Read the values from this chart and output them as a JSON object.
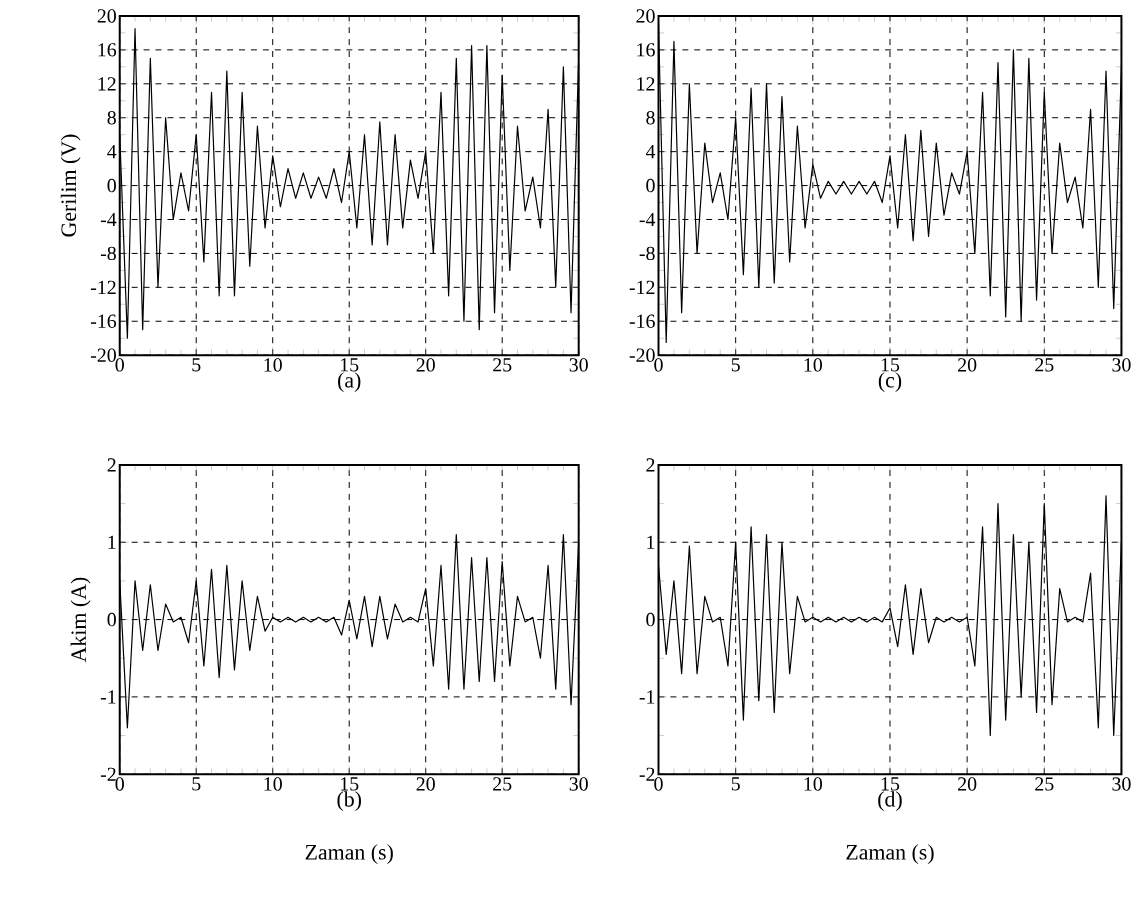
{
  "chart_data": [
    {
      "type": "line",
      "title": "(a)",
      "ylabel": "Gerilim (V)",
      "xlim": [
        0,
        30
      ],
      "ylim": [
        -20,
        20
      ],
      "xticks": [
        0,
        5,
        10,
        15,
        20,
        25,
        30
      ],
      "yticks": [
        -20,
        -16,
        -12,
        -8,
        -4,
        0,
        4,
        8,
        12,
        16,
        20
      ],
      "grid": true,
      "x": [
        0,
        0.5,
        1,
        1.5,
        2,
        2.5,
        3,
        3.5,
        4,
        4.5,
        5,
        5.5,
        6,
        6.5,
        7,
        7.5,
        8,
        8.5,
        9,
        9.5,
        10,
        10.5,
        11,
        11.5,
        12,
        12.5,
        13,
        13.5,
        14,
        14.5,
        15,
        15.5,
        16,
        16.5,
        17,
        17.5,
        18,
        18.5,
        19,
        19.5,
        20,
        20.5,
        21,
        21.5,
        22,
        22.5,
        23,
        23.5,
        24,
        24.5,
        25,
        25.5,
        26,
        26.5,
        27,
        27.5,
        28,
        28.5,
        29,
        29.5,
        30
      ],
      "series": [
        {
          "color": "#000000",
          "values": [
            6,
            -18,
            18.5,
            -17,
            15,
            -12,
            8,
            -4,
            1.5,
            -3,
            6,
            -9,
            11,
            -13,
            13.5,
            -13,
            11,
            -9.5,
            7,
            -5,
            3.5,
            -2.5,
            2,
            -1.5,
            1.5,
            -1.5,
            1,
            -1.5,
            2,
            -2,
            4,
            -5,
            6,
            -7,
            7.5,
            -7,
            6,
            -5,
            3,
            -1.5,
            4,
            -8,
            11,
            -13,
            15,
            -16,
            16.5,
            -17,
            16.5,
            -15,
            13,
            -10,
            7,
            -3,
            1,
            -5,
            9,
            -12,
            14,
            -15,
            15
          ]
        }
      ]
    },
    {
      "type": "line",
      "title": "(c)",
      "xlim": [
        0,
        30
      ],
      "ylim": [
        -20,
        20
      ],
      "xticks": [
        0,
        5,
        10,
        15,
        20,
        25,
        30
      ],
      "yticks": [
        -20,
        -16,
        -12,
        -8,
        -4,
        0,
        4,
        8,
        12,
        16,
        20
      ],
      "grid": true,
      "x": [
        0,
        0.5,
        1,
        1.5,
        2,
        2.5,
        3,
        3.5,
        4,
        4.5,
        5,
        5.5,
        6,
        6.5,
        7,
        7.5,
        8,
        8.5,
        9,
        9.5,
        10,
        10.5,
        11,
        11.5,
        12,
        12.5,
        13,
        13.5,
        14,
        14.5,
        15,
        15.5,
        16,
        16.5,
        17,
        17.5,
        18,
        18.5,
        19,
        19.5,
        20,
        20.5,
        21,
        21.5,
        22,
        22.5,
        23,
        23.5,
        24,
        24.5,
        25,
        25.5,
        26,
        26.5,
        27,
        27.5,
        28,
        28.5,
        29,
        29.5,
        30
      ],
      "series": [
        {
          "color": "#000000",
          "values": [
            19,
            -18.5,
            17,
            -15,
            12,
            -8,
            5,
            -2,
            1.5,
            -4,
            8,
            -10.5,
            11.5,
            -12,
            12,
            -11.5,
            10.5,
            -9,
            7,
            -5,
            2.5,
            -1.5,
            0.5,
            -1,
            0.5,
            -1,
            0.5,
            -1,
            0.5,
            -2,
            3.5,
            -5,
            6,
            -6.5,
            6.5,
            -6,
            5,
            -3.5,
            1.5,
            -1,
            4,
            -8,
            11,
            -13,
            14.5,
            -15.5,
            16,
            -16,
            15,
            -13.5,
            11,
            -8,
            5,
            -2,
            1,
            -5,
            9,
            -12,
            13.5,
            -14.5,
            14
          ]
        }
      ]
    },
    {
      "type": "line",
      "title": "(b)",
      "xlabel": "Zaman (s)",
      "ylabel": "Akim (A)",
      "xlim": [
        0,
        30
      ],
      "ylim": [
        -2,
        2
      ],
      "xticks": [
        0,
        5,
        10,
        15,
        20,
        25,
        30
      ],
      "yticks": [
        -2,
        -1,
        0,
        1,
        2
      ],
      "grid": true,
      "x": [
        0,
        0.5,
        1,
        1.5,
        2,
        2.5,
        3,
        3.5,
        4,
        4.5,
        5,
        5.5,
        6,
        6.5,
        7,
        7.5,
        8,
        8.5,
        9,
        9.5,
        10,
        10.5,
        11,
        11.5,
        12,
        12.5,
        13,
        13.5,
        14,
        14.5,
        15,
        15.5,
        16,
        16.5,
        17,
        17.5,
        18,
        18.5,
        19,
        19.5,
        20,
        20.5,
        21,
        21.5,
        22,
        22.5,
        23,
        23.5,
        24,
        24.5,
        25,
        25.5,
        26,
        26.5,
        27,
        27.5,
        28,
        28.5,
        29,
        29.5,
        30
      ],
      "series": [
        {
          "color": "#000000",
          "values": [
            0.5,
            -1.4,
            0.5,
            -0.4,
            0.45,
            -0.4,
            0.2,
            -0.03,
            0.03,
            -0.3,
            0.5,
            -0.6,
            0.65,
            -0.75,
            0.7,
            -0.65,
            0.5,
            -0.4,
            0.3,
            -0.15,
            0.03,
            -0.03,
            0.03,
            -0.03,
            0.03,
            -0.03,
            0.03,
            -0.03,
            0.03,
            -0.2,
            0.25,
            -0.25,
            0.3,
            -0.35,
            0.3,
            -0.25,
            0.2,
            -0.03,
            0.03,
            -0.03,
            0.4,
            -0.6,
            0.7,
            -0.9,
            1.1,
            -0.9,
            0.8,
            -0.8,
            0.8,
            -0.8,
            0.75,
            -0.6,
            0.3,
            -0.03,
            0.03,
            -0.5,
            0.7,
            -0.9,
            1.1,
            -1.1,
            1.0
          ]
        }
      ]
    },
    {
      "type": "line",
      "title": "(d)",
      "xlabel": "Zaman (s)",
      "xlim": [
        0,
        30
      ],
      "ylim": [
        -2,
        2
      ],
      "xticks": [
        0,
        5,
        10,
        15,
        20,
        25,
        30
      ],
      "yticks": [
        -2,
        -1,
        0,
        1,
        2
      ],
      "grid": true,
      "x": [
        0,
        0.5,
        1,
        1.5,
        2,
        2.5,
        3,
        3.5,
        4,
        4.5,
        5,
        5.5,
        6,
        6.5,
        7,
        7.5,
        8,
        8.5,
        9,
        9.5,
        10,
        10.5,
        11,
        11.5,
        12,
        12.5,
        13,
        13.5,
        14,
        14.5,
        15,
        15.5,
        16,
        16.5,
        17,
        17.5,
        18,
        18.5,
        19,
        19.5,
        20,
        20.5,
        21,
        21.5,
        22,
        22.5,
        23,
        23.5,
        24,
        24.5,
        25,
        25.5,
        26,
        26.5,
        27,
        27.5,
        28,
        28.5,
        29,
        29.5,
        30
      ],
      "series": [
        {
          "color": "#000000",
          "values": [
            0.7,
            -0.45,
            0.5,
            -0.7,
            0.95,
            -0.7,
            0.3,
            -0.03,
            0.03,
            -0.6,
            1.0,
            -1.3,
            1.2,
            -1.05,
            1.1,
            -1.2,
            1.0,
            -0.7,
            0.3,
            -0.03,
            0.03,
            -0.03,
            0.03,
            -0.03,
            0.03,
            -0.03,
            0.03,
            -0.03,
            0.03,
            -0.03,
            0.15,
            -0.35,
            0.45,
            -0.45,
            0.4,
            -0.3,
            0.03,
            -0.03,
            0.03,
            -0.03,
            0.03,
            -0.6,
            1.2,
            -1.5,
            1.5,
            -1.3,
            1.1,
            -1.0,
            1.0,
            -1.2,
            1.5,
            -1.1,
            0.4,
            -0.03,
            0.03,
            -0.03,
            0.6,
            -1.4,
            1.6,
            -1.5,
            1.0
          ]
        }
      ]
    }
  ]
}
